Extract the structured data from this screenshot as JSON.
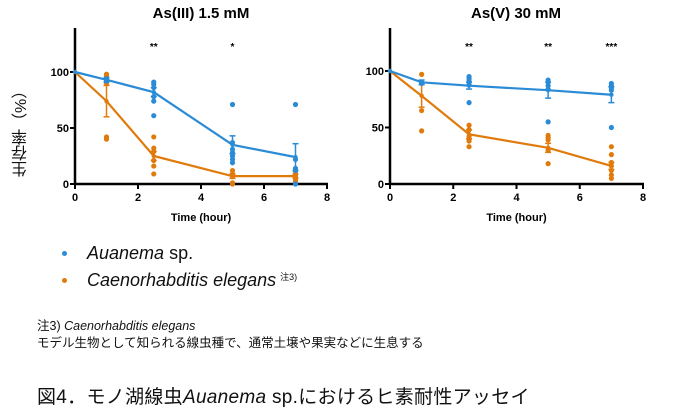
{
  "colors": {
    "auanema": "#2a8bd6",
    "celegans": "#e07b0b",
    "axis": "#000000"
  },
  "ylabel": "生存率（%）",
  "legend": [
    {
      "marker": "dot",
      "color": "#2a8bd6",
      "italic": "Auanema",
      "plain": " sp.",
      "sup": ""
    },
    {
      "marker": "dot",
      "color": "#e07b0b",
      "italic": "Caenorhabditis elegans",
      "plain": "",
      "sup": "注3)"
    }
  ],
  "note": {
    "prefix": "注3) ",
    "italic": "Caenorhabditis elegans",
    "line2": "モデル生物として知られる線虫種で、通常土壌や果実などに生息する"
  },
  "caption": {
    "prefix": "図4．モノ湖線虫",
    "italic": "Auanema",
    "suffix": " sp.におけるヒ素耐性アッセイ"
  },
  "chart_data": [
    {
      "type": "line",
      "title": "As(III) 1.5 mM",
      "xlabel": "Time (hour)",
      "ylabel": "生存率（%）",
      "xlim": [
        0,
        8
      ],
      "ylim": [
        0,
        140
      ],
      "xticks": [
        0,
        2,
        4,
        6,
        8
      ],
      "yticks": [
        0,
        50,
        100
      ],
      "grid": false,
      "x": [
        0,
        1,
        2.5,
        5,
        7
      ],
      "series": [
        {
          "name": "Auanema sp.",
          "color": "#2a8bd6",
          "values": [
            100,
            93,
            82,
            35,
            24
          ],
          "errors": [
            0,
            2,
            4,
            8,
            12
          ],
          "points": [
            [
              1,
              92
            ],
            [
              1,
              94
            ],
            [
              2.5,
              91
            ],
            [
              2.5,
              89
            ],
            [
              2.5,
              86
            ],
            [
              2.5,
              78
            ],
            [
              2.5,
              74
            ],
            [
              2.5,
              61
            ],
            [
              5,
              71
            ],
            [
              5,
              37
            ],
            [
              5,
              31
            ],
            [
              5,
              28
            ],
            [
              5,
              25
            ],
            [
              5,
              22
            ],
            [
              5,
              19
            ],
            [
              7,
              71
            ],
            [
              7,
              22
            ],
            [
              7,
              14
            ],
            [
              7,
              12
            ],
            [
              7,
              0
            ]
          ]
        },
        {
          "name": "Caenorhabditis elegans",
          "color": "#e07b0b",
          "values": [
            100,
            74,
            25,
            7,
            7
          ],
          "errors": [
            0,
            14,
            4,
            2,
            2
          ],
          "points": [
            [
              1,
              98
            ],
            [
              1,
              96
            ],
            [
              1,
              90
            ],
            [
              1,
              42
            ],
            [
              1,
              40
            ],
            [
              2.5,
              42
            ],
            [
              2.5,
              32
            ],
            [
              2.5,
              29
            ],
            [
              2.5,
              21
            ],
            [
              2.5,
              16
            ],
            [
              2.5,
              9
            ],
            [
              5,
              12
            ],
            [
              5,
              9
            ],
            [
              5,
              7
            ],
            [
              5,
              1
            ],
            [
              5,
              0
            ],
            [
              7,
              11
            ],
            [
              7,
              8
            ],
            [
              7,
              6
            ],
            [
              7,
              3
            ],
            [
              7,
              1
            ]
          ]
        }
      ],
      "annotations": [
        {
          "x": 2.5,
          "text": "**"
        },
        {
          "x": 5,
          "text": "*"
        }
      ]
    },
    {
      "type": "line",
      "title": "As(V) 30 mM",
      "xlabel": "Time (hour)",
      "ylabel": "",
      "xlim": [
        0,
        8
      ],
      "ylim": [
        0,
        140
      ],
      "xticks": [
        0,
        2,
        4,
        6,
        8
      ],
      "yticks": [
        0,
        50,
        100
      ],
      "grid": false,
      "x": [
        0,
        1,
        2.5,
        5,
        7
      ],
      "series": [
        {
          "name": "Auanema sp.",
          "color": "#2a8bd6",
          "values": [
            100,
            90,
            87,
            83,
            79
          ],
          "errors": [
            0,
            2,
            3,
            7,
            7
          ],
          "points": [
            [
              1,
              90
            ],
            [
              1,
              89
            ],
            [
              2.5,
              95
            ],
            [
              2.5,
              93
            ],
            [
              2.5,
              91
            ],
            [
              2.5,
              88
            ],
            [
              2.5,
              72
            ],
            [
              5,
              92
            ],
            [
              5,
              90
            ],
            [
              5,
              87
            ],
            [
              5,
              84
            ],
            [
              5,
              55
            ],
            [
              7,
              89
            ],
            [
              7,
              87
            ],
            [
              7,
              85
            ],
            [
              7,
              83
            ],
            [
              7,
              50
            ]
          ]
        },
        {
          "name": "Caenorhabditis elegans",
          "color": "#e07b0b",
          "values": [
            100,
            78,
            44,
            32,
            16
          ],
          "errors": [
            0,
            10,
            4,
            4,
            3
          ],
          "points": [
            [
              1,
              97
            ],
            [
              1,
              65
            ],
            [
              1,
              47
            ],
            [
              2.5,
              52
            ],
            [
              2.5,
              48
            ],
            [
              2.5,
              42
            ],
            [
              2.5,
              40
            ],
            [
              2.5,
              38
            ],
            [
              2.5,
              33
            ],
            [
              5,
              43
            ],
            [
              5,
              41
            ],
            [
              5,
              39
            ],
            [
              5,
              30
            ],
            [
              5,
              18
            ],
            [
              7,
              33
            ],
            [
              7,
              26
            ],
            [
              7,
              19
            ],
            [
              7,
              16
            ],
            [
              7,
              12
            ],
            [
              7,
              8
            ],
            [
              7,
              5
            ]
          ]
        }
      ],
      "annotations": [
        {
          "x": 2.5,
          "text": "**"
        },
        {
          "x": 5,
          "text": "**"
        },
        {
          "x": 7,
          "text": "***"
        }
      ]
    }
  ]
}
